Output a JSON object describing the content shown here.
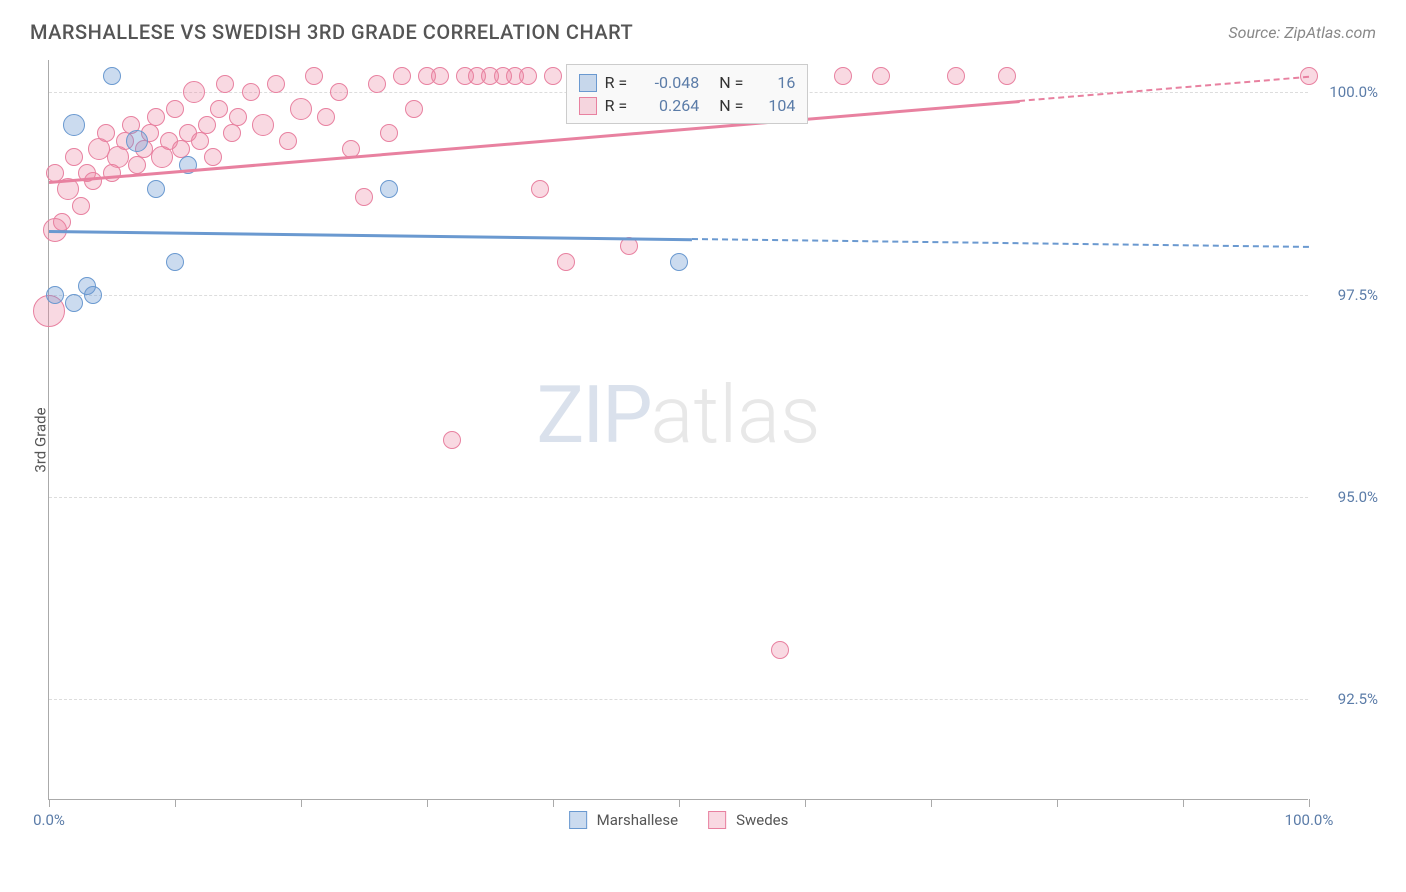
{
  "title": "MARSHALLESE VS SWEDISH 3RD GRADE CORRELATION CHART",
  "source": "Source: ZipAtlas.com",
  "watermark": {
    "a": "ZIP",
    "b": "atlas"
  },
  "chart": {
    "type": "scatter",
    "y_axis_title": "3rd Grade",
    "background_color": "#ffffff",
    "grid_color": "#dddddd",
    "axis_color": "#aaaaaa",
    "label_color": "#5b7ca8",
    "xlim": [
      0,
      100
    ],
    "ylim": [
      91.25,
      100.4
    ],
    "x_ticks": [
      0,
      10,
      20,
      30,
      40,
      50,
      60,
      70,
      80,
      90,
      100
    ],
    "y_ticks": [
      92.5,
      95.0,
      97.5,
      100.0
    ],
    "x_tick_labels_shown": {
      "0": "0.0%",
      "100": "100.0%"
    },
    "y_tick_labels": [
      "92.5%",
      "95.0%",
      "97.5%",
      "100.0%"
    ],
    "series": [
      {
        "name": "Marshallese",
        "color_fill": "rgba(106,153,208,0.35)",
        "color_stroke": "#6a99d0",
        "R": "-0.048",
        "N": "16",
        "trend": {
          "y_at_x0": 98.3,
          "y_at_x100": 98.1,
          "solid_until_x": 51
        },
        "points": [
          {
            "x": 0.5,
            "y": 97.5,
            "r": 9
          },
          {
            "x": 2,
            "y": 99.6,
            "r": 11
          },
          {
            "x": 2,
            "y": 97.4,
            "r": 9
          },
          {
            "x": 3,
            "y": 97.6,
            "r": 9
          },
          {
            "x": 3.5,
            "y": 97.5,
            "r": 9
          },
          {
            "x": 5,
            "y": 100.2,
            "r": 9
          },
          {
            "x": 7,
            "y": 99.4,
            "r": 11
          },
          {
            "x": 8.5,
            "y": 98.8,
            "r": 9
          },
          {
            "x": 10,
            "y": 97.9,
            "r": 9
          },
          {
            "x": 11,
            "y": 99.1,
            "r": 9
          },
          {
            "x": 27,
            "y": 98.8,
            "r": 9
          },
          {
            "x": 50,
            "y": 97.9,
            "r": 9
          }
        ]
      },
      {
        "name": "Swedes",
        "color_fill": "rgba(235,128,160,0.3)",
        "color_stroke": "#e881a0",
        "R": "0.264",
        "N": "104",
        "trend": {
          "y_at_x0": 98.9,
          "y_at_x100": 100.2,
          "solid_until_x": 77
        },
        "points": [
          {
            "x": 0,
            "y": 97.3,
            "r": 16
          },
          {
            "x": 0.5,
            "y": 98.3,
            "r": 12
          },
          {
            "x": 0.5,
            "y": 99.0,
            "r": 9
          },
          {
            "x": 1,
            "y": 98.4,
            "r": 9
          },
          {
            "x": 1.5,
            "y": 98.8,
            "r": 11
          },
          {
            "x": 2,
            "y": 99.2,
            "r": 9
          },
          {
            "x": 2.5,
            "y": 98.6,
            "r": 9
          },
          {
            "x": 3,
            "y": 99.0,
            "r": 9
          },
          {
            "x": 3.5,
            "y": 98.9,
            "r": 9
          },
          {
            "x": 4,
            "y": 99.3,
            "r": 11
          },
          {
            "x": 4.5,
            "y": 99.5,
            "r": 9
          },
          {
            "x": 5,
            "y": 99.0,
            "r": 9
          },
          {
            "x": 5.5,
            "y": 99.2,
            "r": 11
          },
          {
            "x": 6,
            "y": 99.4,
            "r": 9
          },
          {
            "x": 6.5,
            "y": 99.6,
            "r": 9
          },
          {
            "x": 7,
            "y": 99.1,
            "r": 9
          },
          {
            "x": 7.5,
            "y": 99.3,
            "r": 9
          },
          {
            "x": 8,
            "y": 99.5,
            "r": 9
          },
          {
            "x": 8.5,
            "y": 99.7,
            "r": 9
          },
          {
            "x": 9,
            "y": 99.2,
            "r": 11
          },
          {
            "x": 9.5,
            "y": 99.4,
            "r": 9
          },
          {
            "x": 10,
            "y": 99.8,
            "r": 9
          },
          {
            "x": 10.5,
            "y": 99.3,
            "r": 9
          },
          {
            "x": 11,
            "y": 99.5,
            "r": 9
          },
          {
            "x": 11.5,
            "y": 100.0,
            "r": 11
          },
          {
            "x": 12,
            "y": 99.4,
            "r": 9
          },
          {
            "x": 12.5,
            "y": 99.6,
            "r": 9
          },
          {
            "x": 13,
            "y": 99.2,
            "r": 9
          },
          {
            "x": 13.5,
            "y": 99.8,
            "r": 9
          },
          {
            "x": 14,
            "y": 100.1,
            "r": 9
          },
          {
            "x": 14.5,
            "y": 99.5,
            "r": 9
          },
          {
            "x": 15,
            "y": 99.7,
            "r": 9
          },
          {
            "x": 16,
            "y": 100.0,
            "r": 9
          },
          {
            "x": 17,
            "y": 99.6,
            "r": 11
          },
          {
            "x": 18,
            "y": 100.1,
            "r": 9
          },
          {
            "x": 19,
            "y": 99.4,
            "r": 9
          },
          {
            "x": 20,
            "y": 99.8,
            "r": 11
          },
          {
            "x": 21,
            "y": 100.2,
            "r": 9
          },
          {
            "x": 22,
            "y": 99.7,
            "r": 9
          },
          {
            "x": 23,
            "y": 100.0,
            "r": 9
          },
          {
            "x": 24,
            "y": 99.3,
            "r": 9
          },
          {
            "x": 25,
            "y": 98.7,
            "r": 9
          },
          {
            "x": 26,
            "y": 100.1,
            "r": 9
          },
          {
            "x": 27,
            "y": 99.5,
            "r": 9
          },
          {
            "x": 28,
            "y": 100.2,
            "r": 9
          },
          {
            "x": 29,
            "y": 99.8,
            "r": 9
          },
          {
            "x": 30,
            "y": 100.2,
            "r": 9
          },
          {
            "x": 31,
            "y": 100.2,
            "r": 9
          },
          {
            "x": 32,
            "y": 95.7,
            "r": 9
          },
          {
            "x": 33,
            "y": 100.2,
            "r": 9
          },
          {
            "x": 34,
            "y": 100.2,
            "r": 9
          },
          {
            "x": 35,
            "y": 100.2,
            "r": 9
          },
          {
            "x": 36,
            "y": 100.2,
            "r": 9
          },
          {
            "x": 37,
            "y": 100.2,
            "r": 9
          },
          {
            "x": 38,
            "y": 100.2,
            "r": 9
          },
          {
            "x": 39,
            "y": 98.8,
            "r": 9
          },
          {
            "x": 40,
            "y": 100.2,
            "r": 9
          },
          {
            "x": 41,
            "y": 97.9,
            "r": 9
          },
          {
            "x": 42,
            "y": 100.2,
            "r": 9
          },
          {
            "x": 43,
            "y": 100.2,
            "r": 9
          },
          {
            "x": 44,
            "y": 100.2,
            "r": 9
          },
          {
            "x": 46,
            "y": 98.1,
            "r": 9
          },
          {
            "x": 50,
            "y": 100.2,
            "r": 9
          },
          {
            "x": 53,
            "y": 100.2,
            "r": 9
          },
          {
            "x": 55,
            "y": 100.2,
            "r": 9
          },
          {
            "x": 58,
            "y": 93.1,
            "r": 9
          },
          {
            "x": 63,
            "y": 100.2,
            "r": 9
          },
          {
            "x": 66,
            "y": 100.2,
            "r": 9
          },
          {
            "x": 72,
            "y": 100.2,
            "r": 9
          },
          {
            "x": 76,
            "y": 100.2,
            "r": 9
          },
          {
            "x": 100,
            "y": 100.2,
            "r": 9
          }
        ]
      }
    ],
    "legend_box": {
      "R_label": "R =",
      "N_label": "N ="
    },
    "bottom_legend": [
      "Marshallese",
      "Swedes"
    ]
  }
}
